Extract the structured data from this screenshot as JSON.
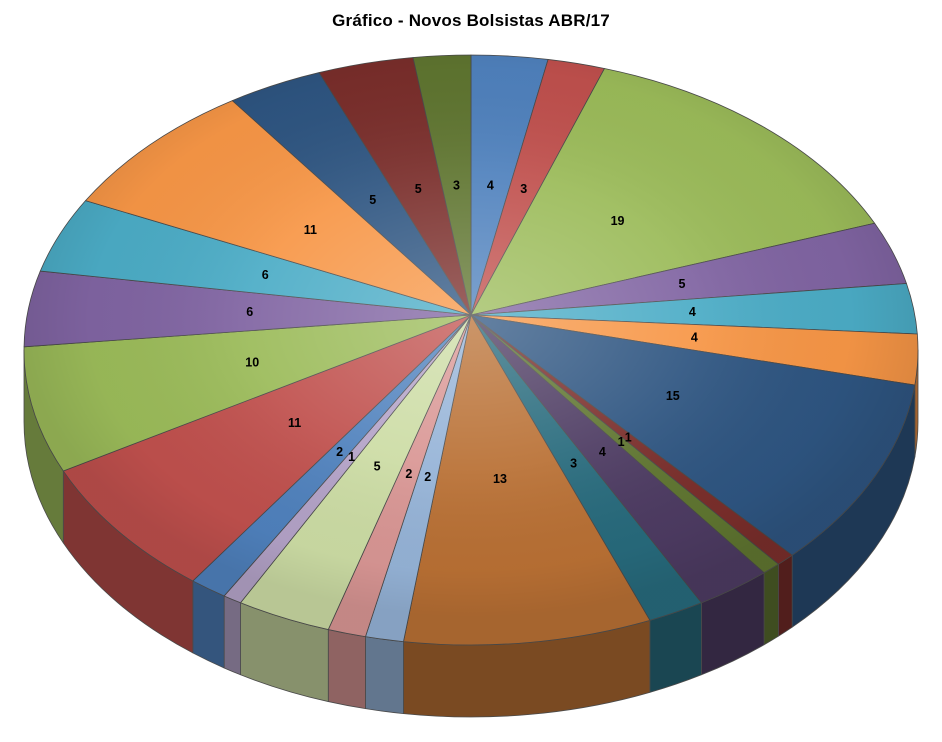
{
  "title": "Gráfico - Novos Bolsistas ABR/17",
  "chart_data": {
    "type": "pie",
    "style": "3d-perspective",
    "title": "Gráfico - Novos Bolsistas ABR/17",
    "total": 145,
    "start_angle_deg": 0,
    "direction": "clockwise",
    "legend": "none",
    "data_labels": "values-inside",
    "slices": [
      {
        "value": 4,
        "color": "#4F81BD"
      },
      {
        "value": 3,
        "color": "#C0504D"
      },
      {
        "value": 19,
        "color": "#9BBB59"
      },
      {
        "value": 5,
        "color": "#8064A2"
      },
      {
        "value": 4,
        "color": "#4BACC6"
      },
      {
        "value": 4,
        "color": "#F79646"
      },
      {
        "value": 15,
        "color": "#2E5581"
      },
      {
        "value": 1,
        "color": "#7A2E2B"
      },
      {
        "value": 1,
        "color": "#5F7530"
      },
      {
        "value": 4,
        "color": "#4D3B62"
      },
      {
        "value": 3,
        "color": "#276A7C"
      },
      {
        "value": 13,
        "color": "#B97034"
      },
      {
        "value": 2,
        "color": "#95B3D7"
      },
      {
        "value": 2,
        "color": "#D99694"
      },
      {
        "value": 5,
        "color": "#CCDCA4"
      },
      {
        "value": 1,
        "color": "#B3A2C7"
      },
      {
        "value": 2,
        "color": "#4F81BD"
      },
      {
        "value": 11,
        "color": "#C0504D"
      },
      {
        "value": 10,
        "color": "#9BBB59"
      },
      {
        "value": 6,
        "color": "#8064A2"
      },
      {
        "value": 6,
        "color": "#4BACC6"
      },
      {
        "value": 11,
        "color": "#F79646"
      },
      {
        "value": 5,
        "color": "#2E5581"
      },
      {
        "value": 5,
        "color": "#7A2E2B"
      },
      {
        "value": 3,
        "color": "#5F7530"
      }
    ]
  }
}
